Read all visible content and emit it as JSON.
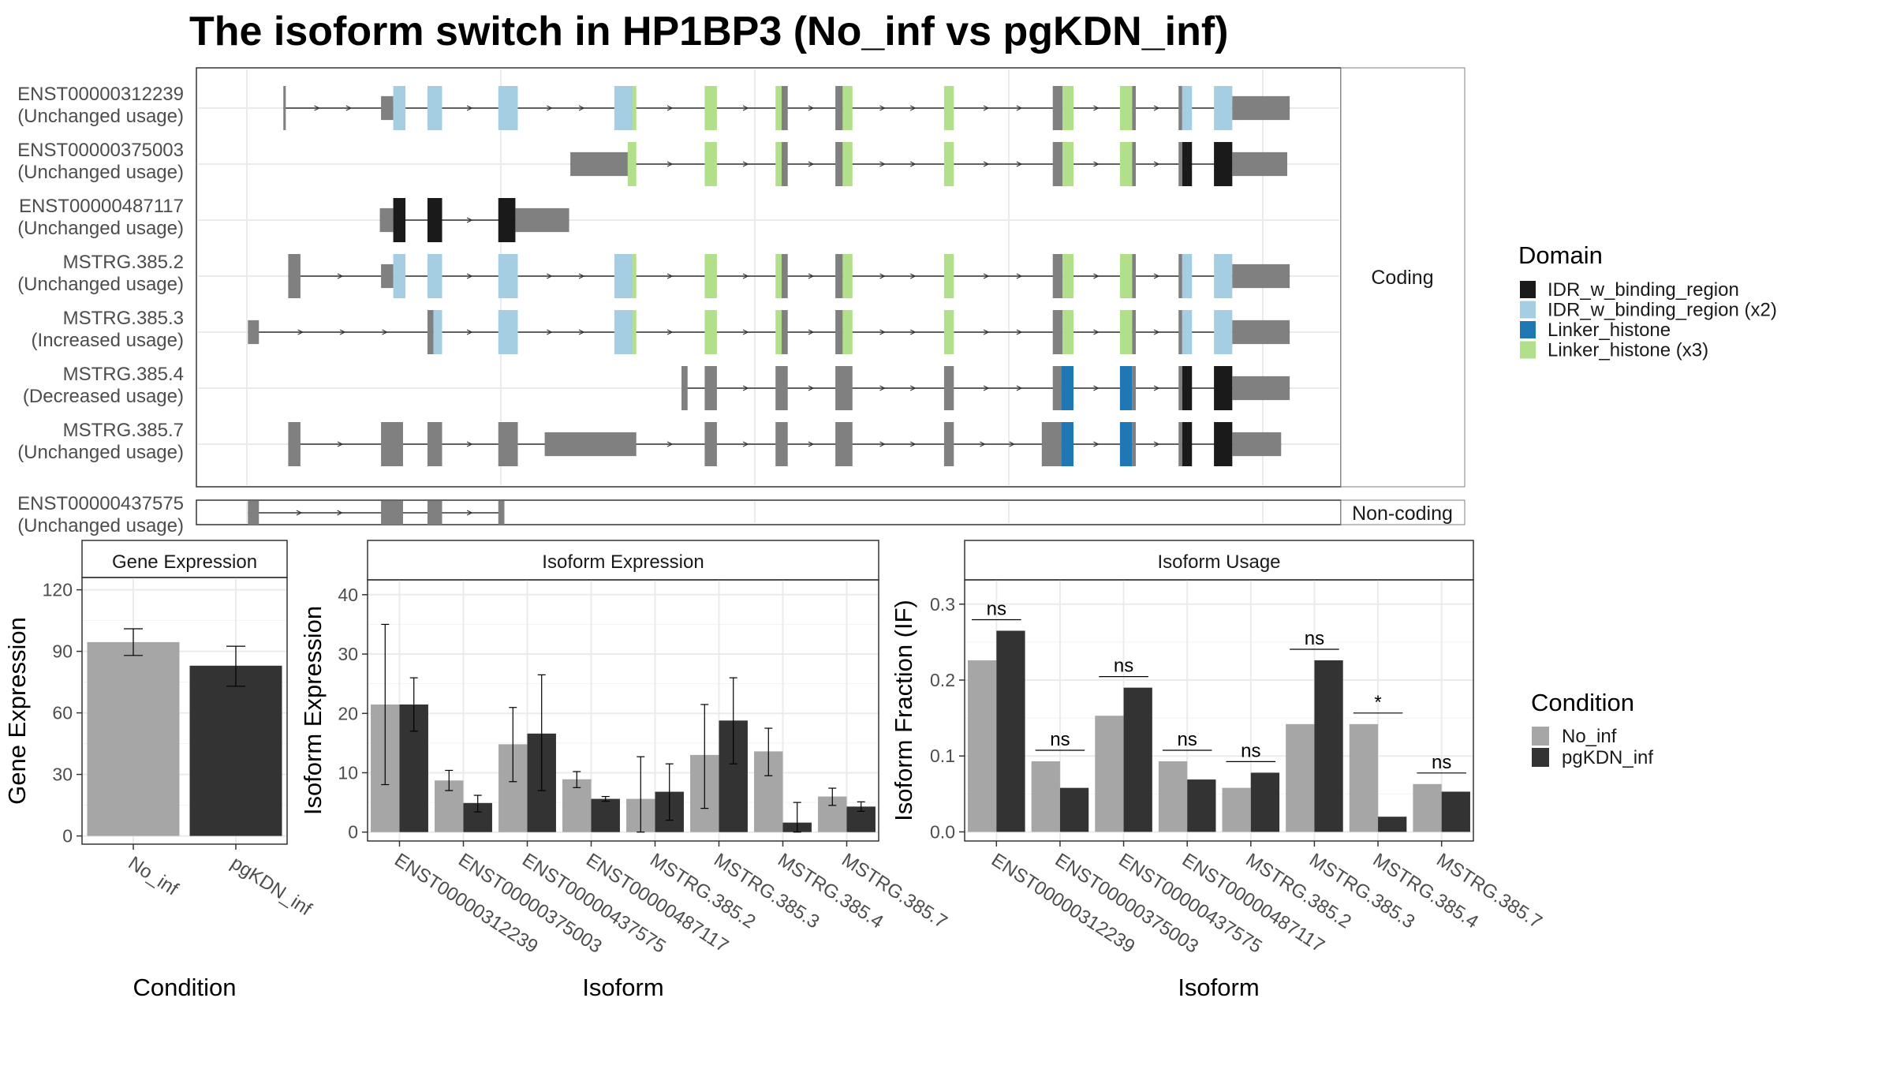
{
  "title": "The isoform switch in HP1BP3 (No_inf vs pgKDN_inf)",
  "colors": {
    "exon": "#808080",
    "intron": "#333333",
    "No_inf": "#A6A6A6",
    "pgKDN_inf": "#333333",
    "frame": "#333333",
    "grid": "#EBEBEB",
    "strip_bg": "#ffffff"
  },
  "structure": {
    "coding_label": "Coding",
    "noncoding_label": "Non-coding",
    "domain_legend": {
      "title": "Domain",
      "items": [
        {
          "label": "IDR_w_binding_region",
          "color": "#1A1A1A"
        },
        {
          "label": "IDR_w_binding_region (x2)",
          "color": "#A6CEE3"
        },
        {
          "label": "Linker_histone",
          "color": "#1F78B4"
        },
        {
          "label": "Linker_histone (x3)",
          "color": "#B2DF8A"
        }
      ]
    },
    "transcripts": [
      {
        "id": "ENST00000312239",
        "status": "(Unchanged usage)",
        "group": "coding",
        "exons": [
          [
            232,
            234,
            "exon"
          ],
          [
            312,
            322,
            "exon"
          ],
          [
            322,
            332,
            "IDR_w_binding_region (x2)"
          ],
          [
            350,
            362,
            "IDR_w_binding_region (x2)"
          ],
          [
            408,
            424,
            "IDR_w_binding_region (x2)"
          ],
          [
            503,
            518,
            "IDR_w_binding_region (x2)"
          ],
          [
            518,
            521,
            "Linker_histone (x3)"
          ],
          [
            577,
            587,
            "Linker_histone (x3)"
          ],
          [
            635,
            640,
            "Linker_histone (x3)"
          ],
          [
            640,
            645,
            "exon"
          ],
          [
            684,
            690,
            "exon"
          ],
          [
            690,
            698,
            "Linker_histone (x3)"
          ],
          [
            773,
            781,
            "Linker_histone (x3)"
          ],
          [
            862,
            870,
            "exon"
          ],
          [
            870,
            879,
            "Linker_histone (x3)"
          ],
          [
            917,
            927,
            "Linker_histone (x3)"
          ],
          [
            927,
            930,
            "exon"
          ],
          [
            965,
            968,
            "exon"
          ],
          [
            968,
            976,
            "IDR_w_binding_region (x2)"
          ],
          [
            994,
            1009,
            "IDR_w_binding_region (x2)"
          ],
          [
            1009,
            1056,
            "exon"
          ]
        ]
      },
      {
        "id": "ENST00000375003",
        "status": "(Unchanged usage)",
        "group": "coding",
        "exons": [
          [
            467,
            514,
            "exon"
          ],
          [
            514,
            521,
            "Linker_histone (x3)"
          ],
          [
            577,
            587,
            "Linker_histone (x3)"
          ],
          [
            635,
            640,
            "Linker_histone (x3)"
          ],
          [
            640,
            645,
            "exon"
          ],
          [
            684,
            690,
            "exon"
          ],
          [
            690,
            698,
            "Linker_histone (x3)"
          ],
          [
            773,
            781,
            "Linker_histone (x3)"
          ],
          [
            862,
            870,
            "exon"
          ],
          [
            870,
            879,
            "Linker_histone (x3)"
          ],
          [
            917,
            927,
            "Linker_histone (x3)"
          ],
          [
            927,
            930,
            "exon"
          ],
          [
            965,
            968,
            "exon"
          ],
          [
            968,
            976,
            "IDR_w_binding_region"
          ],
          [
            994,
            1009,
            "IDR_w_binding_region"
          ],
          [
            1009,
            1054,
            "exon"
          ]
        ]
      },
      {
        "id": "ENST00000487117",
        "status": "(Unchanged usage)",
        "group": "coding",
        "exons": [
          [
            311,
            322,
            "exon"
          ],
          [
            322,
            332,
            "IDR_w_binding_region"
          ],
          [
            350,
            362,
            "IDR_w_binding_region"
          ],
          [
            408,
            422,
            "IDR_w_binding_region"
          ],
          [
            422,
            466,
            "exon"
          ]
        ]
      },
      {
        "id": "MSTRG.385.2",
        "status": "(Unchanged usage)",
        "group": "coding",
        "exons": [
          [
            236,
            246,
            "exon"
          ],
          [
            312,
            322,
            "exon"
          ],
          [
            322,
            332,
            "IDR_w_binding_region (x2)"
          ],
          [
            350,
            362,
            "IDR_w_binding_region (x2)"
          ],
          [
            408,
            424,
            "IDR_w_binding_region (x2)"
          ],
          [
            503,
            518,
            "IDR_w_binding_region (x2)"
          ],
          [
            518,
            521,
            "Linker_histone (x3)"
          ],
          [
            577,
            587,
            "Linker_histone (x3)"
          ],
          [
            635,
            640,
            "Linker_histone (x3)"
          ],
          [
            640,
            645,
            "exon"
          ],
          [
            684,
            690,
            "exon"
          ],
          [
            690,
            698,
            "Linker_histone (x3)"
          ],
          [
            773,
            781,
            "Linker_histone (x3)"
          ],
          [
            862,
            870,
            "exon"
          ],
          [
            870,
            879,
            "Linker_histone (x3)"
          ],
          [
            917,
            927,
            "Linker_histone (x3)"
          ],
          [
            927,
            930,
            "exon"
          ],
          [
            965,
            968,
            "exon"
          ],
          [
            968,
            976,
            "IDR_w_binding_region (x2)"
          ],
          [
            994,
            1009,
            "IDR_w_binding_region (x2)"
          ],
          [
            1009,
            1056,
            "exon"
          ]
        ]
      },
      {
        "id": "MSTRG.385.3",
        "status": "(Increased usage)",
        "group": "coding",
        "exons": [
          [
            203,
            212,
            "exon"
          ],
          [
            350,
            355,
            "exon"
          ],
          [
            355,
            362,
            "IDR_w_binding_region (x2)"
          ],
          [
            408,
            424,
            "IDR_w_binding_region (x2)"
          ],
          [
            503,
            518,
            "IDR_w_binding_region (x2)"
          ],
          [
            518,
            521,
            "Linker_histone (x3)"
          ],
          [
            577,
            587,
            "Linker_histone (x3)"
          ],
          [
            635,
            640,
            "Linker_histone (x3)"
          ],
          [
            640,
            645,
            "exon"
          ],
          [
            684,
            690,
            "exon"
          ],
          [
            690,
            698,
            "Linker_histone (x3)"
          ],
          [
            773,
            781,
            "Linker_histone (x3)"
          ],
          [
            862,
            870,
            "exon"
          ],
          [
            870,
            879,
            "Linker_histone (x3)"
          ],
          [
            917,
            927,
            "Linker_histone (x3)"
          ],
          [
            927,
            930,
            "exon"
          ],
          [
            965,
            968,
            "exon"
          ],
          [
            968,
            976,
            "IDR_w_binding_region (x2)"
          ],
          [
            994,
            1009,
            "IDR_w_binding_region (x2)"
          ],
          [
            1009,
            1056,
            "exon"
          ]
        ]
      },
      {
        "id": "MSTRG.385.4",
        "status": "(Decreased usage)",
        "group": "coding",
        "exons": [
          [
            558,
            563,
            "exon"
          ],
          [
            577,
            587,
            "exon"
          ],
          [
            635,
            645,
            "exon"
          ],
          [
            684,
            698,
            "exon"
          ],
          [
            773,
            781,
            "exon"
          ],
          [
            862,
            869,
            "exon"
          ],
          [
            869,
            879,
            "Linker_histone"
          ],
          [
            917,
            927,
            "Linker_histone"
          ],
          [
            927,
            930,
            "exon"
          ],
          [
            965,
            968,
            "exon"
          ],
          [
            968,
            976,
            "IDR_w_binding_region"
          ],
          [
            994,
            1009,
            "IDR_w_binding_region"
          ],
          [
            1009,
            1056,
            "exon"
          ]
        ]
      },
      {
        "id": "MSTRG.385.7",
        "status": "(Unchanged usage)",
        "group": "coding",
        "exons": [
          [
            236,
            246,
            "exon"
          ],
          [
            312,
            330,
            "exon"
          ],
          [
            350,
            362,
            "exon"
          ],
          [
            408,
            424,
            "exon"
          ],
          [
            446,
            521,
            "exon"
          ],
          [
            577,
            587,
            "exon"
          ],
          [
            635,
            645,
            "exon"
          ],
          [
            684,
            698,
            "exon"
          ],
          [
            773,
            781,
            "exon"
          ],
          [
            853,
            869,
            "exon"
          ],
          [
            869,
            879,
            "Linker_histone"
          ],
          [
            917,
            927,
            "Linker_histone"
          ],
          [
            927,
            930,
            "exon"
          ],
          [
            965,
            968,
            "exon"
          ],
          [
            968,
            976,
            "IDR_w_binding_region"
          ],
          [
            994,
            1009,
            "IDR_w_binding_region"
          ],
          [
            1009,
            1049,
            "exon"
          ]
        ]
      },
      {
        "id": "ENST00000437575",
        "status": "(Unchanged usage)",
        "group": "noncoding",
        "exons": [
          [
            203,
            212,
            "exon"
          ],
          [
            312,
            330,
            "exon"
          ],
          [
            350,
            362,
            "exon"
          ],
          [
            408,
            413,
            "exon"
          ]
        ]
      }
    ]
  },
  "chart_data": [
    {
      "type": "bar",
      "title": "Gene Expression",
      "xlabel": "Condition",
      "ylabel": "Gene Expression",
      "categories": [
        "No_inf",
        "pgKDN_inf"
      ],
      "values": [
        94.5,
        83
      ],
      "error_low": [
        88,
        73
      ],
      "error_high": [
        101,
        92.5
      ],
      "ylim": [
        -4,
        126
      ],
      "yticks": [
        0,
        30,
        60,
        90,
        120
      ]
    },
    {
      "type": "bar",
      "title": "Isoform Expression",
      "xlabel": "Isoform",
      "ylabel": "Isoform Expression",
      "categories": [
        "ENST00000312239",
        "ENST00000375003",
        "ENST00000437575",
        "ENST00000487117",
        "MSTRG.385.2",
        "MSTRG.385.3",
        "MSTRG.385.4",
        "MSTRG.385.7"
      ],
      "series": [
        {
          "name": "No_inf",
          "values": [
            21.5,
            8.7,
            14.8,
            8.9,
            5.6,
            13,
            13.6,
            6.0
          ],
          "error_low": [
            8,
            7,
            8.5,
            7.5,
            0,
            4,
            9.5,
            4.5
          ],
          "error_high": [
            35,
            10.4,
            21,
            10.2,
            12.7,
            21.5,
            17.5,
            7.4
          ]
        },
        {
          "name": "pgKDN_inf",
          "values": [
            21.5,
            4.9,
            16.6,
            5.6,
            6.8,
            18.8,
            1.6,
            4.3
          ],
          "error_low": [
            17,
            3.4,
            7,
            5.2,
            2,
            11.5,
            0,
            3.5
          ],
          "error_high": [
            26,
            6.2,
            26.5,
            6,
            11.5,
            26,
            5,
            5.1
          ]
        }
      ],
      "ylim": [
        -1.5,
        42.5
      ],
      "yticks": [
        0,
        10,
        20,
        30,
        40
      ]
    },
    {
      "type": "bar",
      "title": "Isoform Usage",
      "xlabel": "Isoform",
      "ylabel": "Isoform Fraction (IF)",
      "categories": [
        "ENST00000312239",
        "ENST00000375003",
        "ENST00000437575",
        "ENST00000487117",
        "MSTRG.385.2",
        "MSTRG.385.3",
        "MSTRG.385.4",
        "MSTRG.385.7"
      ],
      "series": [
        {
          "name": "No_inf",
          "values": [
            0.226,
            0.093,
            0.153,
            0.093,
            0.058,
            0.142,
            0.142,
            0.063
          ]
        },
        {
          "name": "pgKDN_inf",
          "values": [
            0.265,
            0.058,
            0.19,
            0.069,
            0.078,
            0.226,
            0.02,
            0.053
          ]
        }
      ],
      "significance": [
        "ns",
        "ns",
        "ns",
        "ns",
        "ns",
        "ns",
        "*",
        "ns"
      ],
      "ylim": [
        -0.012,
        0.332
      ],
      "yticks": [
        0.0,
        0.1,
        0.2,
        0.3
      ],
      "ytick_labels": [
        "0.0",
        "0.1",
        "0.2",
        "0.3"
      ]
    }
  ],
  "condition_legend": {
    "title": "Condition",
    "items": [
      {
        "label": "No_inf",
        "color": "#A6A6A6"
      },
      {
        "label": "pgKDN_inf",
        "color": "#333333"
      }
    ]
  }
}
